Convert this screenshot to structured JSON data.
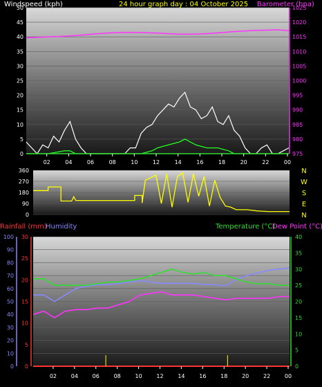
{
  "header": {
    "left_label": "Windspeed (kph)",
    "center_label": "24 hour graph day : 04 October 2025",
    "right_label": "Barometer (hpa)"
  },
  "colors": {
    "wind": "#ffffff",
    "gust": "#22ff22",
    "barometer": "#ff33ff",
    "direction": "#ffff00",
    "humidity": "#8888ff",
    "temperature": "#33dd33",
    "dewpoint": "#ff33ff",
    "rainfall": "#ff3333",
    "tick_yellow": "#ffff00"
  },
  "chart_data": [
    {
      "type": "area",
      "title": "24 hour graph day : 04 October 2025",
      "x_ticks": [
        "02",
        "04",
        "06",
        "08",
        "10",
        "12",
        "14",
        "16",
        "18",
        "20",
        "22",
        "00"
      ],
      "left_axis": {
        "label": "Windspeed (kph)",
        "range": [
          0,
          50
        ],
        "ticks": [
          "0",
          "5",
          "10",
          "15",
          "20",
          "25",
          "30",
          "35",
          "40",
          "45",
          "50"
        ]
      },
      "right_axis": {
        "label": "Barometer (hpa)",
        "range": [
          975,
          1025
        ],
        "ticks": [
          "975",
          "980",
          "985",
          "990",
          "995",
          "1000",
          "1005",
          "1010",
          "1015",
          "1020",
          "1025"
        ]
      },
      "series": [
        {
          "name": "Windspeed (kph)",
          "hours": [
            0.0,
            0.5,
            1.0,
            1.5,
            2.0,
            2.5,
            3.0,
            3.5,
            4.0,
            4.5,
            5.0,
            5.5,
            6.0,
            6.5,
            7.0,
            7.5,
            8.0,
            8.5,
            9.0,
            9.5,
            10.0,
            10.5,
            11.0,
            11.5,
            12.0,
            12.5,
            13.0,
            13.5,
            14.0,
            14.5,
            15.0,
            15.5,
            16.0,
            16.5,
            17.0,
            17.5,
            18.0,
            18.5,
            19.0,
            19.5,
            20.0,
            20.5,
            21.0,
            21.5,
            22.0,
            22.5,
            23.0,
            23.5,
            24.0
          ],
          "values": [
            4,
            2,
            0,
            3,
            2,
            6,
            4,
            8,
            11,
            5,
            2,
            0,
            0,
            0,
            0,
            0,
            0,
            0,
            0,
            2,
            2,
            7,
            9,
            10,
            13,
            15,
            17,
            16,
            19,
            21,
            16,
            15,
            12,
            13,
            16,
            11,
            10,
            13,
            8,
            6,
            2,
            0,
            0,
            2,
            3,
            0,
            0,
            1,
            2
          ]
        },
        {
          "name": "Gust",
          "hours": [
            0.0,
            2.0,
            3.5,
            4.0,
            4.5,
            10.5,
            11.5,
            12.0,
            13.0,
            14.0,
            14.5,
            15.0,
            15.5,
            16.5,
            17.5,
            18.5,
            19.0,
            20.0,
            24.0
          ],
          "values": [
            0,
            0,
            1,
            1,
            0,
            0,
            1,
            2,
            3,
            4,
            5,
            4,
            3,
            2,
            2,
            1,
            0,
            0,
            0
          ]
        },
        {
          "name": "Barometer (hpa)",
          "hours": [
            0,
            1,
            2,
            3,
            4,
            5,
            6,
            7,
            8,
            9,
            10,
            11,
            12,
            13,
            14,
            15,
            16,
            17,
            18,
            19,
            20,
            21,
            22,
            23,
            24
          ],
          "values": [
            1014.7,
            1014.8,
            1015.0,
            1015.1,
            1015.3,
            1015.6,
            1015.9,
            1016.2,
            1016.4,
            1016.5,
            1016.5,
            1016.4,
            1016.3,
            1016.1,
            1015.9,
            1015.9,
            1016.0,
            1016.2,
            1016.5,
            1016.8,
            1017.0,
            1017.2,
            1017.3,
            1017.4,
            1017.1
          ]
        }
      ]
    },
    {
      "type": "line",
      "title": "",
      "x_ticks": [
        "02",
        "04",
        "06",
        "08",
        "10",
        "12",
        "14",
        "16",
        "18",
        "20",
        "22",
        "00"
      ],
      "left_axis": {
        "label": "",
        "range": [
          0,
          360
        ],
        "ticks": [
          "0",
          "90",
          "180",
          "270",
          "360"
        ]
      },
      "right_axis": {
        "label": "",
        "ticks": [
          "N",
          "W",
          "S",
          "E",
          "N"
        ]
      },
      "series": [
        {
          "name": "Wind direction",
          "hours": [
            0.0,
            1.4,
            1.4,
            2.6,
            2.6,
            3.6,
            3.8,
            4.0,
            9.5,
            9.5,
            10.2,
            10.2,
            10.5,
            11.0,
            11.5,
            12.0,
            12.5,
            13.0,
            13.5,
            14.0,
            14.5,
            15.0,
            15.5,
            16.0,
            16.5,
            17.0,
            17.5,
            18.0,
            18.5,
            19.0,
            19.5,
            20.0,
            21.0,
            22.0,
            23.0,
            24.0
          ],
          "values": [
            195,
            195,
            225,
            225,
            110,
            110,
            145,
            115,
            115,
            155,
            155,
            95,
            280,
            300,
            320,
            90,
            330,
            60,
            310,
            340,
            100,
            330,
            150,
            310,
            70,
            280,
            140,
            70,
            60,
            40,
            40,
            40,
            30,
            25,
            25,
            25
          ]
        }
      ]
    },
    {
      "type": "line",
      "title": "",
      "x_ticks": [
        "02",
        "04",
        "06",
        "08",
        "10",
        "12",
        "14",
        "16",
        "18",
        "20",
        "22",
        "00"
      ],
      "axes": [
        {
          "label": "Humidity",
          "range": [
            0,
            100
          ],
          "ticks": [
            "0",
            "10",
            "20",
            "30",
            "40",
            "50",
            "60",
            "70",
            "80",
            "90",
            "100"
          ]
        },
        {
          "label": "Rainfall (mm)",
          "range": [
            0,
            30
          ],
          "ticks": [
            "0",
            "5",
            "10",
            "15",
            "20",
            "25",
            "30"
          ]
        },
        {
          "label": "Temperature (°C)",
          "range": [
            0,
            40
          ],
          "ticks": [
            "0",
            "5",
            "10",
            "15",
            "20",
            "25",
            "30",
            "35",
            "40"
          ]
        }
      ],
      "legend": [
        "Rainfall (mm)",
        "Humidity",
        "Temperature (°C)",
        "Dew Point (°C)"
      ],
      "series": [
        {
          "name": "Temperature (°C)",
          "hours": [
            0,
            1,
            2,
            3,
            4,
            5,
            6,
            7,
            8,
            9,
            10,
            11,
            12,
            13,
            14,
            15,
            16,
            17,
            18,
            19,
            20,
            21,
            22,
            23,
            24
          ],
          "values": [
            27,
            27,
            25,
            25,
            25,
            25,
            25.5,
            26,
            26,
            26.5,
            27,
            28,
            29,
            30,
            29,
            28.5,
            29,
            28,
            28,
            27,
            26,
            25.5,
            25.5,
            25,
            25
          ]
        },
        {
          "name": "Dew Point (°C)",
          "hours": [
            0,
            1,
            2,
            3,
            4,
            5,
            6,
            7,
            8,
            9,
            10,
            11,
            12,
            13,
            14,
            15,
            16,
            17,
            18,
            19,
            20,
            21,
            22,
            23,
            24
          ],
          "values": [
            16,
            17,
            15,
            17,
            17.5,
            17.5,
            18,
            18,
            19,
            20,
            22,
            22.5,
            23,
            22,
            22,
            22,
            21.5,
            21,
            20.5,
            21,
            21,
            21,
            21,
            21.5,
            21.5
          ]
        },
        {
          "name": "Humidity",
          "hours": [
            0,
            1,
            2,
            3,
            4,
            5,
            6,
            7,
            8,
            9,
            10,
            11,
            12,
            13,
            14,
            15,
            16,
            17,
            18,
            19,
            20,
            21,
            22,
            23,
            24
          ],
          "values": [
            55,
            55,
            50,
            55,
            60,
            62,
            63,
            63,
            64,
            65,
            66,
            65,
            64,
            64,
            64,
            64,
            63,
            63,
            62,
            67,
            70,
            72,
            74,
            75,
            76
          ]
        },
        {
          "name": "Rainfall (mm)",
          "hours": [
            0,
            24
          ],
          "values": [
            0,
            0
          ]
        }
      ]
    }
  ]
}
